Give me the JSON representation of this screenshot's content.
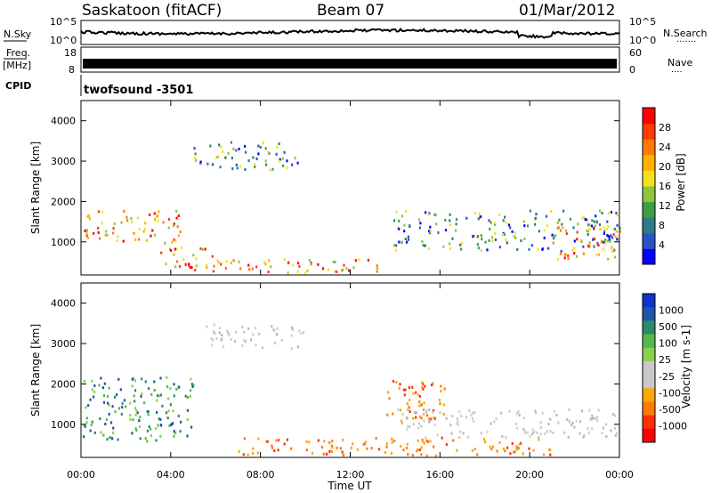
{
  "header": {
    "station": "Saskatoon (fitACF)",
    "beam": "Beam 07",
    "date": "01/Mar/2012"
  },
  "noise_panel": {
    "left_label": "N.Sky",
    "left_ticks": [
      "10^5",
      "10^0"
    ],
    "right_ticks": [
      "10^5",
      "10^0"
    ],
    "right_label": "N.Search",
    "right_legend_dots": "·······"
  },
  "freq_panel": {
    "label_line1": "Freq.",
    "label_line2": "[MHz]",
    "left_ticks": [
      "18",
      "8"
    ],
    "right_ticks": [
      "60",
      "0"
    ],
    "right_label": "Nave",
    "right_legend_dots": "····"
  },
  "cpid_panel": {
    "label": "CPID",
    "program": "twofsound -3501"
  },
  "range_axis": {
    "label": "Slant Range [km]",
    "ticks": [
      1000,
      2000,
      3000,
      4000
    ],
    "range": [
      180,
      4500
    ]
  },
  "time_axis": {
    "label": "Time UT",
    "ticks": [
      "00:00",
      "04:00",
      "08:00",
      "12:00",
      "16:00",
      "20:00",
      "00:00"
    ],
    "range_hours": [
      0,
      24
    ]
  },
  "colors": {
    "power": [
      "#0a00ff",
      "#2a52c6",
      "#2f7b87",
      "#3aa040",
      "#8cc63f",
      "#f5e11b",
      "#ffb000",
      "#ff7a00",
      "#ff3b00",
      "#ff0000"
    ],
    "velocity_scale": [
      "#1034c8",
      "#2255a8",
      "#2a8a6a",
      "#55b84a",
      "#88d050",
      "#c8c8c8",
      "#c8c8c8",
      "#ffa500",
      "#ff7a00",
      "#ff3000",
      "#ff0000"
    ]
  },
  "power_scale": {
    "label": "Power [dB]",
    "ticks": [
      "4",
      "8",
      "12",
      "16",
      "20",
      "24",
      "28"
    ]
  },
  "velocity_scale": {
    "label": "Velocity [m s-1]",
    "ticks": [
      "1000",
      "500",
      "100",
      "25",
      "-25",
      "-100",
      "-500",
      "-1000"
    ]
  },
  "chart_data": {
    "type": "heatmap",
    "title": "Saskatoon (fitACF)",
    "xlabel": "Time UT",
    "ylabel": "Slant Range [km]",
    "xlim": [
      0,
      24
    ],
    "ylim": [
      180,
      4500
    ],
    "power_bands": [
      {
        "name": "low-range echo band",
        "t0": 0,
        "t1": 4.5,
        "r0": 1000,
        "r1": 1800,
        "level": "high"
      },
      {
        "name": "ground scatter descent",
        "t0": 3.5,
        "t1": 6.0,
        "r0": 300,
        "r1": 900,
        "level": "high"
      },
      {
        "name": "near-range ionospheric",
        "t0": 5.5,
        "t1": 13.5,
        "r0": 250,
        "r1": 600,
        "level": "high"
      },
      {
        "name": "far-range daytime",
        "t0": 5.0,
        "t1": 9.7,
        "r0": 2800,
        "r1": 3500,
        "level": "medium"
      },
      {
        "name": "evening band",
        "t0": 13.8,
        "t1": 24,
        "r0": 800,
        "r1": 1800,
        "level": "medium"
      },
      {
        "name": "late evening strong",
        "t0": 21,
        "t1": 24,
        "r0": 600,
        "r1": 1400,
        "level": "high"
      }
    ],
    "velocity_bands": [
      {
        "name": "early morning positive",
        "t0": 0,
        "t1": 5,
        "r0": 600,
        "r1": 2200,
        "sign": "positive"
      },
      {
        "name": "ground scatter near-zero",
        "t0": 5.5,
        "t1": 10,
        "r0": 2900,
        "r1": 3500,
        "sign": "zero"
      },
      {
        "name": "daytime negative",
        "t0": 7,
        "t1": 21,
        "r0": 250,
        "r1": 700,
        "sign": "negative"
      },
      {
        "name": "afternoon negative",
        "t0": 13.5,
        "t1": 16.5,
        "r0": 1100,
        "r1": 2100,
        "sign": "negative"
      },
      {
        "name": "evening ground scatter",
        "t0": 14,
        "t1": 24,
        "r0": 700,
        "r1": 1400,
        "sign": "zero"
      }
    ]
  }
}
